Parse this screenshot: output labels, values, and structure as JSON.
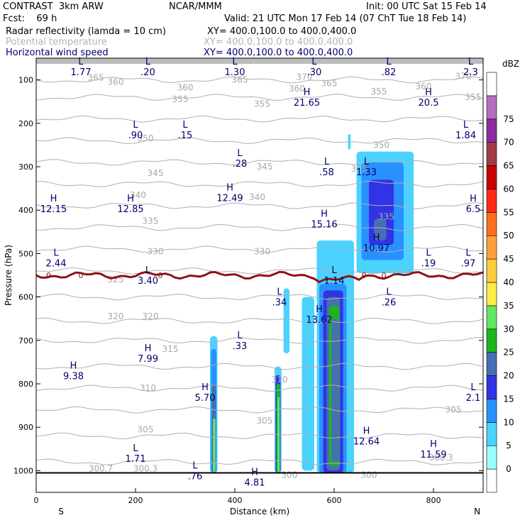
{
  "header": {
    "left1": "CONTRAST  3km ARW",
    "center1": "NCAR/MMM",
    "right1": "Init: 00 UTC Sat 15 Feb 14",
    "left2": "Fcst:    69 h",
    "right2": "Valid: 21 UTC Mon 17 Feb 14 (07 ChT Tue 18 Feb 14)",
    "fields": [
      {
        "name": "Radar reflectivity (lamda = 10 cm)",
        "xy": "XY= 400.0,100.0 to 400.0,400.0",
        "color": "#000000"
      },
      {
        "name": "Potential temperature",
        "xy": "XY= 400.0,100.0 to 400.0,400.0",
        "color": "#b4b4b4"
      },
      {
        "name": "Horizontal wind speed",
        "xy": "XY= 400.0,100.0 to 400.0,400.0",
        "color": "#00006e"
      }
    ]
  },
  "chart_data": {
    "type": "heatmap",
    "xlabel": "Distance (km)",
    "ylabel": "Pressure (hPa)",
    "xlim": [
      0,
      900
    ],
    "ylim": [
      1050,
      50
    ],
    "x_ticks": [
      0,
      200,
      400,
      600,
      800
    ],
    "y_ticks": [
      100,
      200,
      300,
      400,
      500,
      600,
      700,
      800,
      900,
      1000
    ],
    "x_end_labels": {
      "left": "S",
      "right": "N"
    },
    "colorbar": {
      "unit": "dBZ",
      "levels": [
        0,
        5,
        10,
        15,
        20,
        25,
        30,
        35,
        40,
        45,
        50,
        55,
        60,
        65,
        70,
        75
      ],
      "colors": [
        "#ffffff",
        "#9bffff",
        "#4bd2ff",
        "#2891ff",
        "#3232e6",
        "#466eb4",
        "#1eb41e",
        "#64e664",
        "#ffeb46",
        "#ffcd3c",
        "#ffa03c",
        "#ff6e1e",
        "#ff2814",
        "#c80000",
        "#a03c46",
        "#8c2da0",
        "#b46ebe",
        "#ffffff"
      ]
    },
    "reflectivity_cells": [
      {
        "x": [
          565,
          640
        ],
        "p": [
          470,
          1005
        ],
        "dbz": 5
      },
      {
        "x": [
          535,
          560
        ],
        "p": [
          600,
          1000
        ],
        "dbz": 5
      },
      {
        "x": [
          498,
          510
        ],
        "p": [
          580,
          730
        ],
        "dbz": 5
      },
      {
        "x": [
          570,
          625
        ],
        "p": [
          570,
          1005
        ],
        "dbz": 10
      },
      {
        "x": [
          578,
          618
        ],
        "p": [
          585,
          1005
        ],
        "dbz": 15
      },
      {
        "x": [
          585,
          612
        ],
        "p": [
          600,
          1000
        ],
        "dbz": 20
      },
      {
        "x": [
          590,
          610
        ],
        "p": [
          620,
          990
        ],
        "dbz": 25
      },
      {
        "x": [
          595,
          609
        ],
        "p": [
          650,
          980
        ],
        "dbz": 20
      },
      {
        "x": [
          350,
          365
        ],
        "p": [
          690,
          1005
        ],
        "dbz": 5
      },
      {
        "x": [
          352,
          363
        ],
        "p": [
          720,
          1005
        ],
        "dbz": 10
      },
      {
        "x": [
          354,
          362
        ],
        "p": [
          800,
          1005
        ],
        "dbz": 20
      },
      {
        "x": [
          356,
          361
        ],
        "p": [
          880,
          1005
        ],
        "dbz": 30
      },
      {
        "x": [
          480,
          494
        ],
        "p": [
          760,
          1005
        ],
        "dbz": 5
      },
      {
        "x": [
          482,
          492
        ],
        "p": [
          780,
          1005
        ],
        "dbz": 15
      },
      {
        "x": [
          484,
          491
        ],
        "p": [
          800,
          1005
        ],
        "dbz": 25
      },
      {
        "x": [
          486,
          490
        ],
        "p": [
          830,
          1005
        ],
        "dbz": 30
      },
      {
        "x": [
          645,
          760
        ],
        "p": [
          265,
          545
        ],
        "dbz": 5
      },
      {
        "x": [
          655,
          740
        ],
        "p": [
          290,
          515
        ],
        "dbz": 10
      },
      {
        "x": [
          670,
          720
        ],
        "p": [
          330,
          480
        ],
        "dbz": 15
      },
      {
        "x": [
          680,
          705
        ],
        "p": [
          420,
          470
        ],
        "dbz": 20
      },
      {
        "x": [
          628,
          633
        ],
        "p": [
          225,
          260
        ],
        "dbz": 5
      }
    ],
    "theta_contour_labels": [
      {
        "text": "370",
        "x": 540,
        "p": 93
      },
      {
        "text": "365",
        "x": 120,
        "p": 95
      },
      {
        "text": "360",
        "x": 160,
        "p": 105
      },
      {
        "text": "360",
        "x": 300,
        "p": 118
      },
      {
        "text": "365",
        "x": 410,
        "p": 100
      },
      {
        "text": "360",
        "x": 525,
        "p": 120
      },
      {
        "text": "365",
        "x": 590,
        "p": 108
      },
      {
        "text": "355",
        "x": 690,
        "p": 127
      },
      {
        "text": "360",
        "x": 780,
        "p": 115
      },
      {
        "text": "370",
        "x": 860,
        "p": 92
      },
      {
        "text": "355",
        "x": 290,
        "p": 145
      },
      {
        "text": "355",
        "x": 455,
        "p": 155
      },
      {
        "text": "355",
        "x": 880,
        "p": 140
      },
      {
        "text": "350",
        "x": 220,
        "p": 235
      },
      {
        "text": "350",
        "x": 695,
        "p": 250
      },
      {
        "text": "345",
        "x": 240,
        "p": 315
      },
      {
        "text": "345",
        "x": 460,
        "p": 300
      },
      {
        "text": "345",
        "x": 650,
        "p": 305
      },
      {
        "text": "340",
        "x": 205,
        "p": 365
      },
      {
        "text": "340",
        "x": 445,
        "p": 370
      },
      {
        "text": "335",
        "x": 230,
        "p": 425
      },
      {
        "text": "335",
        "x": 705,
        "p": 415
      },
      {
        "text": "330",
        "x": 240,
        "p": 495
      },
      {
        "text": "330",
        "x": 455,
        "p": 495
      },
      {
        "text": "325",
        "x": 160,
        "p": 560
      },
      {
        "text": "320",
        "x": 160,
        "p": 645
      },
      {
        "text": "320",
        "x": 230,
        "p": 645
      },
      {
        "text": "315",
        "x": 270,
        "p": 720
      },
      {
        "text": "310",
        "x": 225,
        "p": 810
      },
      {
        "text": "310",
        "x": 490,
        "p": 790
      },
      {
        "text": "305",
        "x": 220,
        "p": 905
      },
      {
        "text": "305",
        "x": 460,
        "p": 885
      },
      {
        "text": "305",
        "x": 840,
        "p": 860
      },
      {
        "text": "300.7",
        "x": 130,
        "p": 995
      },
      {
        "text": "300.3",
        "x": 220,
        "p": 995
      },
      {
        "text": "300.3",
        "x": 815,
        "p": 970
      },
      {
        "text": "300",
        "x": 510,
        "p": 1010
      },
      {
        "text": "300",
        "x": 670,
        "p": 1010
      }
    ],
    "freezing_level": {
      "label": "0",
      "p": 550,
      "color": "#8c1414"
    },
    "wind_extrema": [
      {
        "t": "L",
        "v": "1.77",
        "x": 90,
        "p": 70
      },
      {
        "t": "L",
        "v": ".20",
        "x": 225,
        "p": 70
      },
      {
        "t": "L",
        "v": "1.30",
        "x": 400,
        "p": 70
      },
      {
        "t": "L",
        "v": ".30",
        "x": 560,
        "p": 70
      },
      {
        "t": "L",
        "v": ".82",
        "x": 710,
        "p": 70
      },
      {
        "t": "L",
        "v": "2.3",
        "x": 875,
        "p": 70
      },
      {
        "t": "H",
        "v": "21.65",
        "x": 545,
        "p": 140
      },
      {
        "t": "H",
        "v": "20.5",
        "x": 790,
        "p": 140
      },
      {
        "t": "L",
        "v": ".90",
        "x": 200,
        "p": 215
      },
      {
        "t": "L",
        "v": ".15",
        "x": 300,
        "p": 215
      },
      {
        "t": "L",
        "v": "1.84",
        "x": 865,
        "p": 215
      },
      {
        "t": "L",
        "v": ".28",
        "x": 410,
        "p": 280
      },
      {
        "t": "L",
        "v": ".58",
        "x": 585,
        "p": 300
      },
      {
        "t": "L",
        "v": "1.33",
        "x": 665,
        "p": 300
      },
      {
        "t": "H",
        "v": "12.49",
        "x": 390,
        "p": 360
      },
      {
        "t": "H",
        "v": "12.15",
        "x": 35,
        "p": 385
      },
      {
        "t": "H",
        "v": "12.85",
        "x": 190,
        "p": 385
      },
      {
        "t": "H",
        "v": "6.5",
        "x": 880,
        "p": 385
      },
      {
        "t": "H",
        "v": "15.16",
        "x": 580,
        "p": 420
      },
      {
        "t": "H",
        "v": "10.97",
        "x": 685,
        "p": 475
      },
      {
        "t": "L",
        "v": "2.44",
        "x": 40,
        "p": 510
      },
      {
        "t": "L",
        "v": ".19",
        "x": 790,
        "p": 510
      },
      {
        "t": "L",
        "v": ".97",
        "x": 870,
        "p": 510
      },
      {
        "t": "L",
        "v": "3.40",
        "x": 225,
        "p": 550
      },
      {
        "t": "L",
        "v": "1.14",
        "x": 600,
        "p": 550
      },
      {
        "t": "L",
        "v": ".34",
        "x": 490,
        "p": 600
      },
      {
        "t": "L",
        "v": ".26",
        "x": 710,
        "p": 600
      },
      {
        "t": "H",
        "v": "13.62",
        "x": 570,
        "p": 640
      },
      {
        "t": "L",
        "v": ".33",
        "x": 410,
        "p": 700
      },
      {
        "t": "H",
        "v": "7.99",
        "x": 225,
        "p": 730
      },
      {
        "t": "H",
        "v": "9.38",
        "x": 75,
        "p": 770
      },
      {
        "t": "H",
        "v": "5.70",
        "x": 340,
        "p": 820
      },
      {
        "t": "L",
        "v": "2.1",
        "x": 880,
        "p": 820
      },
      {
        "t": "H",
        "v": "12.64",
        "x": 665,
        "p": 920
      },
      {
        "t": "H",
        "v": "11.59",
        "x": 800,
        "p": 950
      },
      {
        "t": "L",
        "v": "1.71",
        "x": 200,
        "p": 960
      },
      {
        "t": "L",
        "v": ".76",
        "x": 320,
        "p": 1000
      },
      {
        "t": "H",
        "v": "4.81",
        "x": 440,
        "p": 1015
      }
    ]
  }
}
